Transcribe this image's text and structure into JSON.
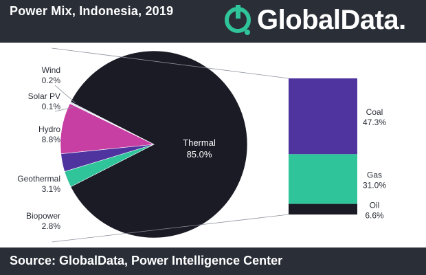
{
  "header": {
    "title": "Power Mix, Indonesia, 2019"
  },
  "logo": {
    "text": "GlobalData."
  },
  "footer": {
    "source": "Source: GlobalData, Power Intelligence Center"
  },
  "colors": {
    "thermal": "#1b1b26",
    "hydro": "#c73fa3",
    "geothermal": "#4f34a0",
    "biopower": "#2fc49a",
    "solar_pv": "#9aa4ae",
    "wind": "#c8d8e8",
    "coal": "#4f34a0",
    "gas": "#2fc49a",
    "oil": "#1b1b26",
    "logo_accent": "#2fc49a"
  },
  "chart_data": [
    {
      "type": "pie",
      "slices": [
        {
          "label": "Thermal",
          "value": 85.0,
          "value_label": "85.0%"
        },
        {
          "label": "Biopower",
          "value": 2.8,
          "value_label": "2.8%"
        },
        {
          "label": "Geothermal",
          "value": 3.1,
          "value_label": "3.1%"
        },
        {
          "label": "Hydro",
          "value": 8.8,
          "value_label": "8.8%"
        },
        {
          "label": "Solar PV",
          "value": 0.1,
          "value_label": "0.1%"
        },
        {
          "label": "Wind",
          "value": 0.2,
          "value_label": "0.2%"
        }
      ]
    },
    {
      "type": "bar",
      "stacked": true,
      "breakdown_of": "Thermal",
      "segments": [
        {
          "label": "Coal",
          "value": 47.3,
          "value_label": "47.3%"
        },
        {
          "label": "Gas",
          "value": 31.0,
          "value_label": "31.0%"
        },
        {
          "label": "Oil",
          "value": 6.6,
          "value_label": "6.6%"
        }
      ]
    }
  ]
}
